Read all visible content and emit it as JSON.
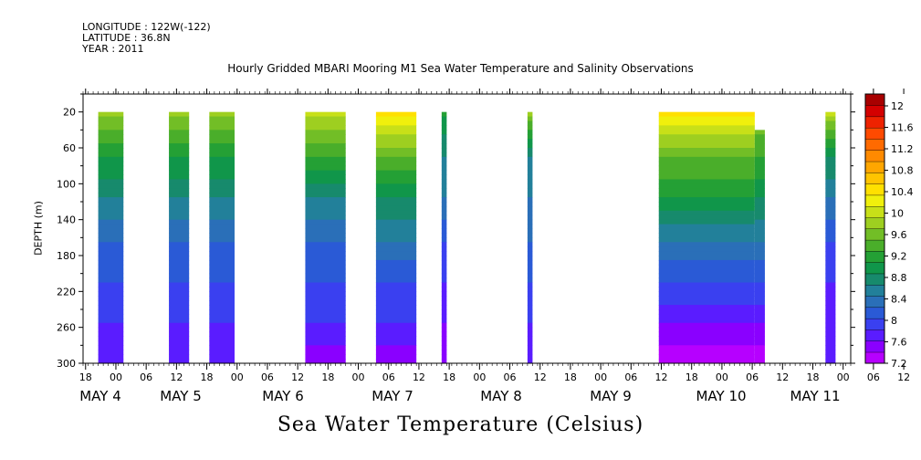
{
  "header": {
    "longitude": "LONGITUDE : 122W(-122)",
    "latitude": "LATITUDE : 36.8N",
    "year": "YEAR : 2011"
  },
  "chart_data": {
    "type": "heatmap",
    "title": "Hourly Gridded MBARI Mooring M1 Sea Water Temperature and Salinity Observations",
    "xlabel": "Sea Water Temperature (Celsius)",
    "ylabel": "DEPTH (m)",
    "y_ticks": [
      20,
      60,
      100,
      140,
      180,
      220,
      260,
      300
    ],
    "ylim": [
      300,
      0
    ],
    "x_hour_ticks": [
      "18",
      "00",
      "06",
      "12",
      "18",
      "00",
      "06",
      "12",
      "18",
      "00",
      "06",
      "12",
      "18",
      "00",
      "06",
      "12",
      "18",
      "00",
      "06",
      "12",
      "18",
      "00",
      "06",
      "12",
      "18",
      "00",
      "06",
      "12"
    ],
    "x_day_labels": [
      "MAY 4",
      "MAY 5",
      "MAY 6",
      "MAY 7",
      "MAY 8",
      "MAY 9",
      "MAY 10",
      "MAY 11"
    ],
    "x_range_hours": [
      0,
      152
    ],
    "legend": {
      "placement": "right",
      "levels": [
        7.2,
        7.4,
        7.6,
        7.8,
        8,
        8.2,
        8.4,
        8.6,
        8.8,
        9,
        9.2,
        9.4,
        9.6,
        9.8,
        10,
        10.2,
        10.4,
        10.6,
        10.8,
        11,
        11.2,
        11.4,
        11.6,
        11.8,
        12
      ],
      "labels": [
        "12",
        "11.6",
        "11.2",
        "10.8",
        "10.4",
        "10",
        "9.6",
        "9.2",
        "8.8",
        "8.4",
        "8",
        "7.6",
        "7.2"
      ],
      "colors": [
        "#b600ff",
        "#8a00ff",
        "#5a1cff",
        "#3a40f0",
        "#2a5ad6",
        "#2a6fb8",
        "#22809a",
        "#178a6c",
        "#10964a",
        "#24a035",
        "#4aae2a",
        "#72be26",
        "#9ecf20",
        "#c8e018",
        "#f0f00c",
        "#ffe000",
        "#ffc400",
        "#ffa600",
        "#ff8a00",
        "#ff6a00",
        "#ff4a00",
        "#ee2200",
        "#d40000",
        "#a80000"
      ]
    },
    "data_blocks": [
      {
        "x_start": 3,
        "x_end": 8,
        "top_depth": 20,
        "profile": [
          9.6,
          9.0,
          8.6,
          8.2,
          8.0,
          7.8,
          7.6
        ]
      },
      {
        "x_start": 17,
        "x_end": 21,
        "top_depth": 20,
        "profile": [
          9.6,
          9.0,
          8.6,
          8.2,
          8.0,
          7.8,
          7.6
        ]
      },
      {
        "x_start": 25,
        "x_end": 30,
        "top_depth": 20,
        "profile": [
          9.6,
          9.0,
          8.6,
          8.2,
          8.0,
          7.8,
          7.6
        ]
      },
      {
        "x_start": 44,
        "x_end": 52,
        "top_depth": 20,
        "profile": [
          9.8,
          9.2,
          8.6,
          8.2,
          8.0,
          7.8,
          7.4
        ]
      },
      {
        "x_start": 58,
        "x_end": 66,
        "top_depth": 20,
        "profile": [
          10.2,
          9.4,
          8.8,
          8.4,
          8.0,
          7.8,
          7.4
        ]
      },
      {
        "x_start": 71,
        "x_end": 72,
        "top_depth": 20,
        "profile": [
          9.0,
          8.6,
          8.4,
          8.0,
          7.8,
          7.6,
          7.4
        ]
      },
      {
        "x_start": 88,
        "x_end": 89,
        "top_depth": 20,
        "profile": [
          9.6,
          8.6,
          8.4,
          8.2,
          8.0,
          7.8,
          7.6
        ]
      },
      {
        "x_start": 114,
        "x_end": 133,
        "top_depth": 20,
        "profile": [
          10.2,
          9.4,
          9.0,
          8.4,
          8.0,
          7.6,
          7.2
        ]
      },
      {
        "x_start": 133,
        "x_end": 135,
        "top_depth": 40,
        "profile": [
          9.6,
          9.2,
          8.8,
          8.4,
          8.0,
          7.6,
          7.2
        ]
      },
      {
        "x_start": 147,
        "x_end": 149,
        "top_depth": 20,
        "profile": [
          9.8,
          8.8,
          8.4,
          8.0,
          7.8,
          7.6,
          7.6
        ]
      }
    ]
  }
}
